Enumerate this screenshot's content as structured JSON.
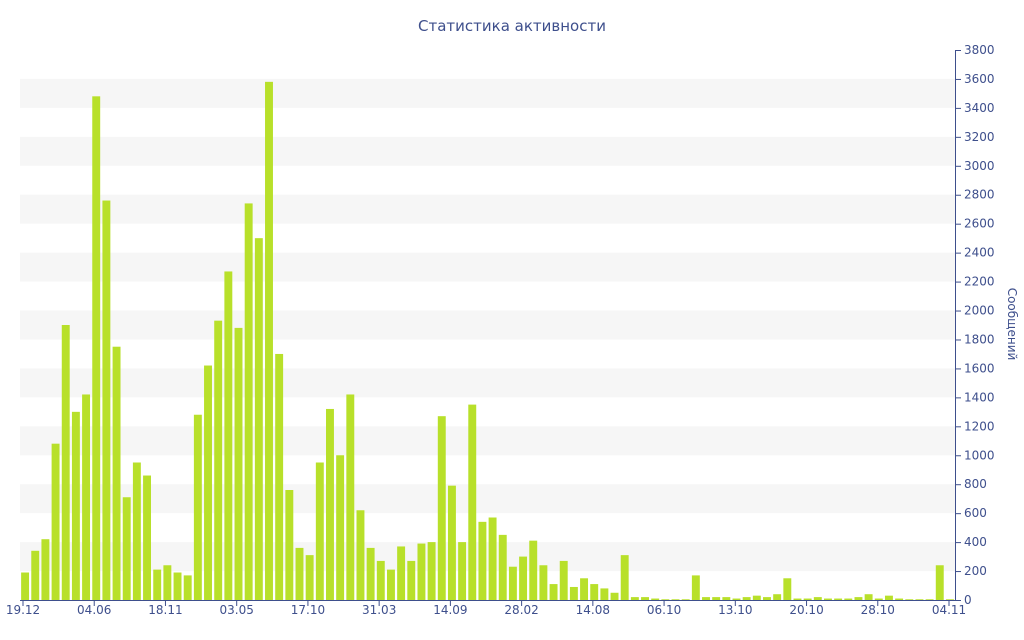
{
  "chart_data": {
    "type": "bar",
    "title": "Статистика активности",
    "ylabel": "Сообщений",
    "xlabel": "",
    "ylim": [
      0,
      3800
    ],
    "y_ticks": [
      0,
      200,
      400,
      600,
      800,
      1000,
      1200,
      1400,
      1600,
      1800,
      2000,
      2200,
      2400,
      2600,
      2800,
      3000,
      3200,
      3400,
      3600,
      3800
    ],
    "y_axis_side": "right",
    "grid": "alternating horizontal bands",
    "x_tick_labels": [
      "19.12",
      "04.06",
      "18.11",
      "03.05",
      "17.10",
      "31.03",
      "14.09",
      "28.02",
      "14.08",
      "06.10",
      "13.10",
      "20.10",
      "28.10",
      "04.11"
    ],
    "values": [
      190,
      340,
      420,
      1080,
      1900,
      1300,
      1420,
      3480,
      2760,
      1750,
      710,
      950,
      860,
      210,
      240,
      190,
      170,
      1280,
      1620,
      1930,
      2270,
      1880,
      2740,
      2500,
      3580,
      1700,
      760,
      360,
      310,
      950,
      1320,
      1000,
      1420,
      620,
      360,
      270,
      210,
      370,
      270,
      390,
      400,
      1270,
      790,
      400,
      1350,
      540,
      570,
      450,
      230,
      300,
      410,
      240,
      110,
      270,
      90,
      150,
      110,
      80,
      50,
      310,
      20,
      20,
      10,
      5,
      5,
      5,
      170,
      20,
      20,
      20,
      10,
      20,
      30,
      20,
      40,
      150,
      10,
      10,
      20,
      10,
      10,
      10,
      20,
      40,
      10,
      30,
      10,
      5,
      5,
      5,
      240,
      5
    ],
    "colors": {
      "bar": "#b8e02a",
      "band": "#f6f6f6",
      "axis": "#3e4f8c",
      "text": "#3e4f8c"
    }
  }
}
